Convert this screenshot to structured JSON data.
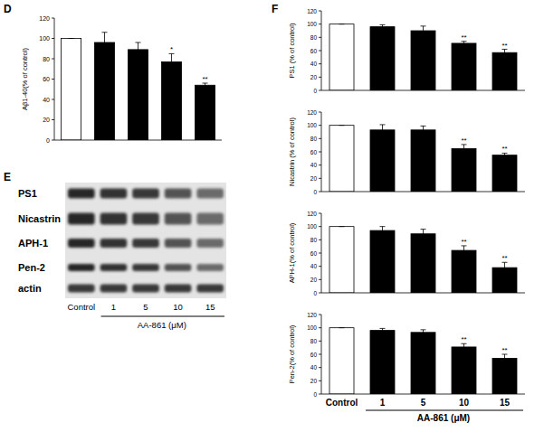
{
  "panel_labels": [
    "D",
    "E",
    "F"
  ],
  "blot": {
    "rows": [
      "PS1",
      "Nicastrin",
      "APH-1",
      "Pen-2",
      "actin"
    ],
    "lanes": [
      "Control",
      "1",
      "5",
      "10",
      "15"
    ],
    "xlabel": "AA-861 (μM)"
  },
  "chart_data": [
    {
      "type": "bar",
      "ylabel": "Aβ1-40(% of control)",
      "categories": [
        null,
        null,
        null,
        null,
        null
      ],
      "values": [
        100,
        96,
        89,
        77,
        54
      ],
      "errors": [
        0,
        10,
        7,
        8,
        2
      ],
      "significance": [
        null,
        null,
        null,
        "*",
        "**"
      ],
      "colors": [
        "#ffffff",
        "#000000",
        "#000000",
        "#000000",
        "#000000"
      ],
      "ylim": [
        0,
        120
      ],
      "yticks": [
        0,
        20,
        40,
        60,
        80,
        100,
        120
      ],
      "grid": false
    },
    {
      "type": "bar",
      "ylabel": "PS1 (% of control)",
      "categories": [
        null,
        null,
        null,
        null,
        null
      ],
      "values": [
        100,
        96,
        90,
        71,
        57
      ],
      "errors": [
        0,
        3,
        7,
        3,
        5
      ],
      "significance": [
        null,
        null,
        null,
        "**",
        "**"
      ],
      "colors": [
        "#ffffff",
        "#000000",
        "#000000",
        "#000000",
        "#000000"
      ],
      "ylim": [
        0,
        120
      ],
      "yticks": [
        0,
        20,
        40,
        60,
        80,
        100,
        120
      ],
      "grid": false
    },
    {
      "type": "bar",
      "ylabel": "Nicastrin (% of control)",
      "categories": [
        null,
        null,
        null,
        null,
        null
      ],
      "values": [
        100,
        93,
        93,
        65,
        55
      ],
      "errors": [
        0,
        8,
        6,
        6,
        3
      ],
      "significance": [
        null,
        null,
        null,
        "**",
        "**"
      ],
      "colors": [
        "#ffffff",
        "#000000",
        "#000000",
        "#000000",
        "#000000"
      ],
      "ylim": [
        0,
        120
      ],
      "yticks": [
        0,
        20,
        40,
        60,
        80,
        100,
        120
      ],
      "grid": false
    },
    {
      "type": "bar",
      "ylabel": "APH-1(% of control)",
      "categories": [
        null,
        null,
        null,
        null,
        null
      ],
      "values": [
        100,
        94,
        89,
        64,
        38
      ],
      "errors": [
        0,
        6,
        7,
        7,
        8
      ],
      "significance": [
        null,
        null,
        null,
        "**",
        "**"
      ],
      "colors": [
        "#ffffff",
        "#000000",
        "#000000",
        "#000000",
        "#000000"
      ],
      "ylim": [
        0,
        120
      ],
      "yticks": [
        0,
        20,
        40,
        60,
        80,
        100,
        120
      ],
      "grid": false
    },
    {
      "type": "bar",
      "ylabel": "Pen-2(% of control)",
      "xlabel": "AA-861 (μM)",
      "categories": [
        "Control",
        "1",
        "5",
        "10",
        "15"
      ],
      "values": [
        100,
        96,
        93,
        71,
        54
      ],
      "errors": [
        0,
        3,
        4,
        5,
        6
      ],
      "significance": [
        null,
        null,
        null,
        "**",
        "**"
      ],
      "colors": [
        "#ffffff",
        "#000000",
        "#000000",
        "#000000",
        "#000000"
      ],
      "ylim": [
        0,
        120
      ],
      "yticks": [
        0,
        20,
        40,
        60,
        80,
        100,
        120
      ],
      "grid": false
    }
  ]
}
